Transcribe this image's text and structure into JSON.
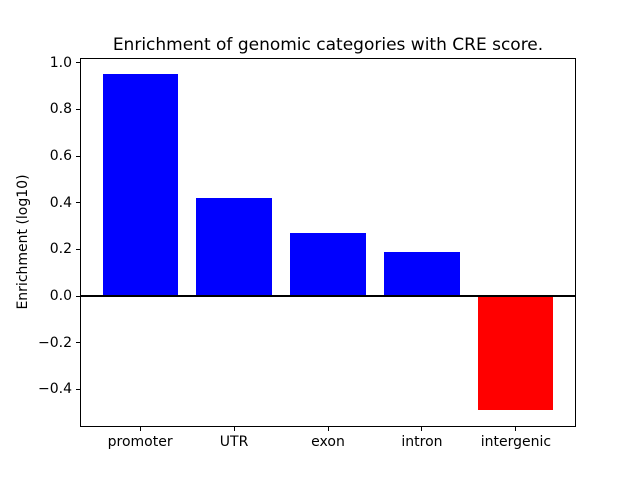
{
  "chart_data": {
    "type": "bar",
    "title": "Enrichment of genomic categories with CRE score.",
    "xlabel": "",
    "ylabel": "Enrichment (log10)",
    "categories": [
      "promoter",
      "UTR",
      "exon",
      "intron",
      "intergenic"
    ],
    "values": [
      0.95,
      0.42,
      0.27,
      0.19,
      -0.49
    ],
    "positive_color": "#0000ff",
    "negative_color": "#ff0000",
    "axis_color": "#000000",
    "background_color": "#ffffff",
    "yticks": [
      1.0,
      0.8,
      0.6,
      0.4,
      0.2,
      0.0,
      -0.2,
      -0.4
    ],
    "ylim": [
      -0.562,
      1.022
    ],
    "xlim": [
      -0.64,
      4.64
    ],
    "bar_width": 0.8,
    "grid": false,
    "legend": "none",
    "zero_line": true
  }
}
